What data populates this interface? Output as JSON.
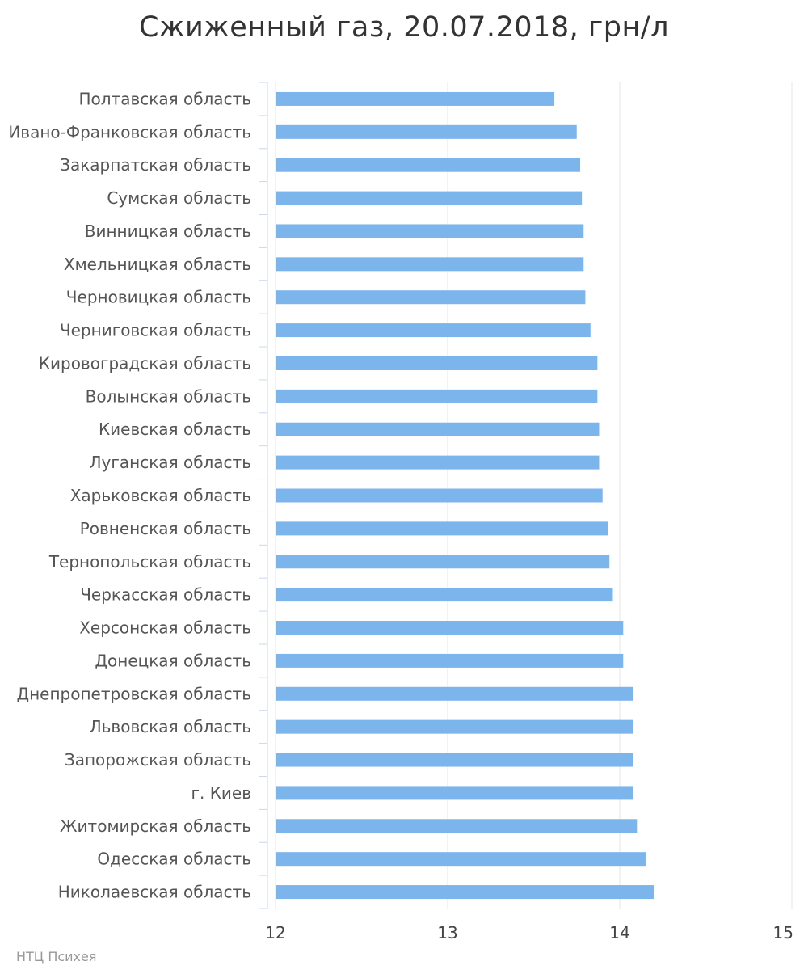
{
  "page": {
    "credit": "НТЦ Психея"
  },
  "chart_data": {
    "type": "bar",
    "orientation": "horizontal",
    "title": "Сжиженный газ, 20.07.2018, грн/л",
    "xlabel": "",
    "ylabel": "",
    "xlim": [
      12,
      15
    ],
    "ticks": [
      12,
      13,
      14,
      15
    ],
    "grid": true,
    "legend": "none",
    "bar_color": "#7cb5ec",
    "categories": [
      "Полтавская область",
      "Ивано-Франковская область",
      "Закарпатская область",
      "Сумская область",
      "Винницкая область",
      "Хмельницкая область",
      "Черновицкая область",
      "Черниговская область",
      "Кировоградская область",
      "Волынская область",
      "Киевская область",
      "Луганская область",
      "Харьковская область",
      "Ровненская область",
      "Тернопольская область",
      "Черкасская область",
      "Херсонская область",
      "Донецкая область",
      "Днепропетровская область",
      "Львовская область",
      "Запорожская область",
      "г. Киев",
      "Житомирская область",
      "Одесская область",
      "Николаевская область"
    ],
    "values": [
      13.62,
      13.75,
      13.77,
      13.78,
      13.79,
      13.79,
      13.8,
      13.83,
      13.87,
      13.87,
      13.88,
      13.88,
      13.9,
      13.93,
      13.94,
      13.96,
      14.02,
      14.02,
      14.08,
      14.08,
      14.08,
      14.08,
      14.1,
      14.15,
      14.2
    ]
  }
}
